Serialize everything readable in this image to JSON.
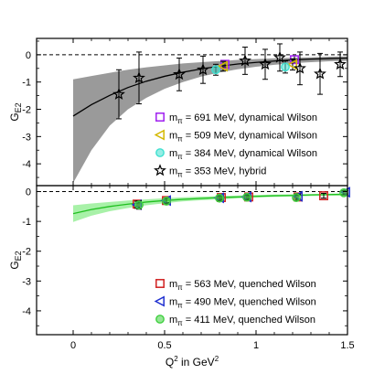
{
  "chart_data": [
    {
      "type": "scatter",
      "panel": "top",
      "ylabel_main": "G",
      "ylabel_sub": "E2",
      "xlim": [
        -0.2,
        1.5
      ],
      "ylim": [
        -4.8,
        0.6
      ],
      "yticks": [
        0,
        -1,
        -2,
        -3,
        -4
      ],
      "ytick_labels": [
        "0",
        "-1",
        "-2",
        "-3",
        "-4"
      ],
      "reference_line_y": 0,
      "fit": {
        "x": [
          0,
          0.1,
          0.2,
          0.3,
          0.4,
          0.5,
          0.6,
          0.7,
          0.8,
          0.9,
          1.0,
          1.1,
          1.2,
          1.3,
          1.4,
          1.5
        ],
        "y": [
          -2.25,
          -1.83,
          -1.49,
          -1.2,
          -0.97,
          -0.79,
          -0.64,
          -0.52,
          -0.42,
          -0.34,
          -0.28,
          -0.23,
          -0.19,
          -0.16,
          -0.14,
          -0.12
        ],
        "lo": [
          -4.7,
          -3.5,
          -2.6,
          -2.0,
          -1.58,
          -1.25,
          -1.0,
          -0.8,
          -0.65,
          -0.53,
          -0.44,
          -0.37,
          -0.31,
          -0.27,
          -0.24,
          -0.22
        ],
        "hi": [
          -0.9,
          -0.78,
          -0.66,
          -0.55,
          -0.46,
          -0.39,
          -0.32,
          -0.27,
          -0.23,
          -0.19,
          -0.16,
          -0.13,
          -0.11,
          -0.09,
          -0.07,
          -0.06
        ],
        "color": "#000000",
        "band_color": "#8f8f8f"
      },
      "series": [
        {
          "name": "m",
          "sub": "π",
          "label_rest": " = 691 MeV, dynamical Wilson",
          "marker": "square",
          "color": "#a020f0",
          "points": [
            {
              "x": 0.83,
              "y": -0.35,
              "err": 0.12
            },
            {
              "x": 1.21,
              "y": -0.18,
              "err": 0.14
            }
          ]
        },
        {
          "name": "m",
          "sub": "π",
          "label_rest": " = 509 MeV, dynamical Wilson",
          "marker": "triangle-left",
          "color": "#d4b800",
          "points": [
            {
              "x": 0.82,
              "y": -0.42,
              "err": 0.18
            },
            {
              "x": 1.2,
              "y": -0.36,
              "err": 0.2
            }
          ]
        },
        {
          "name": "m",
          "sub": "π",
          "label_rest": " = 384 MeV, dynamical Wilson",
          "marker": "circle",
          "color": "#40e0d0",
          "points": [
            {
              "x": 0.78,
              "y": -0.55,
              "err": 0.2
            },
            {
              "x": 1.16,
              "y": -0.45,
              "err": 0.22
            }
          ]
        },
        {
          "name": "m",
          "sub": "π",
          "label_rest": " = 353 MeV, hybrid",
          "marker": "star",
          "color": "#000000",
          "points": [
            {
              "x": 0.25,
              "y": -1.45,
              "err": 0.9
            },
            {
              "x": 0.36,
              "y": -0.85,
              "err": 0.95
            },
            {
              "x": 0.58,
              "y": -0.72,
              "err": 0.6
            },
            {
              "x": 0.71,
              "y": -0.55,
              "err": 0.5
            },
            {
              "x": 0.94,
              "y": -0.22,
              "err": 0.5
            },
            {
              "x": 1.05,
              "y": -0.35,
              "err": 0.55
            },
            {
              "x": 1.13,
              "y": -0.1,
              "err": 0.5
            },
            {
              "x": 1.24,
              "y": -0.5,
              "err": 0.6
            },
            {
              "x": 1.35,
              "y": -0.7,
              "err": 0.75
            },
            {
              "x": 1.46,
              "y": -0.35,
              "err": 0.45
            }
          ]
        }
      ]
    },
    {
      "type": "scatter",
      "panel": "bottom",
      "ylabel_main": "G",
      "ylabel_sub": "E2",
      "xlabel_main": "Q",
      "xlabel_sup": "2",
      "xlabel_mid": " in GeV",
      "xlabel_sup2": "2",
      "xlim": [
        -0.2,
        1.5
      ],
      "ylim": [
        -4.8,
        0.2
      ],
      "xticks": [
        0,
        0.5,
        1,
        1.5
      ],
      "xtick_labels": [
        "0",
        "0.5",
        "1",
        "1.5"
      ],
      "yticks": [
        0,
        -1,
        -2,
        -3,
        -4
      ],
      "ytick_labels": [
        "0",
        "-1",
        "-2",
        "-3",
        "-4"
      ],
      "reference_line_y": 0,
      "fit": {
        "x": [
          0,
          0.1,
          0.2,
          0.3,
          0.4,
          0.5,
          0.6,
          0.7,
          0.8,
          0.9,
          1.0,
          1.1,
          1.2,
          1.3,
          1.4,
          1.5
        ],
        "y": [
          -0.74,
          -0.6,
          -0.5,
          -0.42,
          -0.35,
          -0.3,
          -0.26,
          -0.23,
          -0.2,
          -0.18,
          -0.16,
          -0.14,
          -0.13,
          -0.11,
          -0.1,
          -0.09
        ],
        "lo": [
          -1.02,
          -0.81,
          -0.66,
          -0.55,
          -0.46,
          -0.39,
          -0.33,
          -0.29,
          -0.26,
          -0.23,
          -0.2,
          -0.18,
          -0.17,
          -0.15,
          -0.14,
          -0.13
        ],
        "hi": [
          -0.46,
          -0.4,
          -0.35,
          -0.3,
          -0.26,
          -0.22,
          -0.19,
          -0.17,
          -0.15,
          -0.13,
          -0.11,
          -0.1,
          -0.09,
          -0.08,
          -0.07,
          -0.06
        ],
        "color": "#20c020",
        "band_color": "#9ff09f"
      },
      "series": [
        {
          "name": "m",
          "sub": "π",
          "label_rest": " = 563 MeV, quenched Wilson",
          "marker": "square",
          "color": "#d02020",
          "points": [
            {
              "x": 0.35,
              "y": -0.42,
              "err": 0.1
            },
            {
              "x": 0.51,
              "y": -0.3,
              "err": 0.07
            },
            {
              "x": 0.81,
              "y": -0.2,
              "err": 0.06
            },
            {
              "x": 0.96,
              "y": -0.18,
              "err": 0.06
            },
            {
              "x": 1.23,
              "y": -0.18,
              "err": 0.08
            },
            {
              "x": 1.37,
              "y": -0.14,
              "err": 0.08
            }
          ]
        },
        {
          "name": "m",
          "sub": "π",
          "label_rest": " = 490 MeV, quenched Wilson",
          "marker": "triangle-left",
          "color": "#2030d0",
          "points": [
            {
              "x": 0.35,
              "y": -0.44,
              "err": 0.12
            },
            {
              "x": 0.51,
              "y": -0.3,
              "err": 0.08
            },
            {
              "x": 0.8,
              "y": -0.21,
              "err": 0.07
            },
            {
              "x": 0.95,
              "y": -0.18,
              "err": 0.07
            },
            {
              "x": 1.23,
              "y": -0.16,
              "err": 0.09
            },
            {
              "x": 1.49,
              "y": -0.02,
              "err": 0.06
            }
          ]
        },
        {
          "name": "m",
          "sub": "π",
          "label_rest": " = 411 MeV, quenched Wilson",
          "marker": "circle",
          "color": "#40d040",
          "points": [
            {
              "x": 0.36,
              "y": -0.45,
              "err": 0.14
            },
            {
              "x": 0.51,
              "y": -0.32,
              "err": 0.09
            },
            {
              "x": 0.8,
              "y": -0.22,
              "err": 0.08
            },
            {
              "x": 0.95,
              "y": -0.19,
              "err": 0.08
            },
            {
              "x": 1.22,
              "y": -0.2,
              "err": 0.1
            },
            {
              "x": 1.48,
              "y": -0.04,
              "err": 0.07
            }
          ]
        }
      ]
    }
  ]
}
